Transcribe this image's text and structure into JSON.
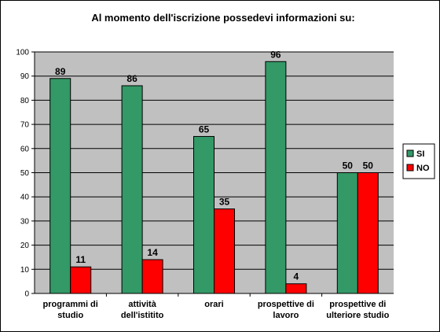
{
  "chart_data": {
    "type": "bar",
    "title": "Al momento dell'iscrizione possedevi  informazioni su:",
    "xlabel": "",
    "ylabel": "",
    "ylim": [
      0,
      100
    ],
    "yticks": [
      0,
      10,
      20,
      30,
      40,
      50,
      60,
      70,
      80,
      90,
      100
    ],
    "grid": true,
    "legend_position": "right",
    "categories": [
      [
        "programmi di",
        "studio"
      ],
      [
        "attività",
        "dell'istitito"
      ],
      [
        "orari"
      ],
      [
        "prospettive di",
        "lavoro"
      ],
      [
        "prospettive  di",
        "ulteriore studio"
      ]
    ],
    "series": [
      {
        "name": "SI",
        "color": "#339966",
        "values": [
          89,
          86,
          65,
          96,
          50
        ]
      },
      {
        "name": "NO",
        "color": "#ff0000",
        "values": [
          11,
          14,
          35,
          4,
          50
        ]
      }
    ],
    "colors": {
      "plot_background": "#c0c0c0",
      "gridline": "#000000"
    }
  }
}
